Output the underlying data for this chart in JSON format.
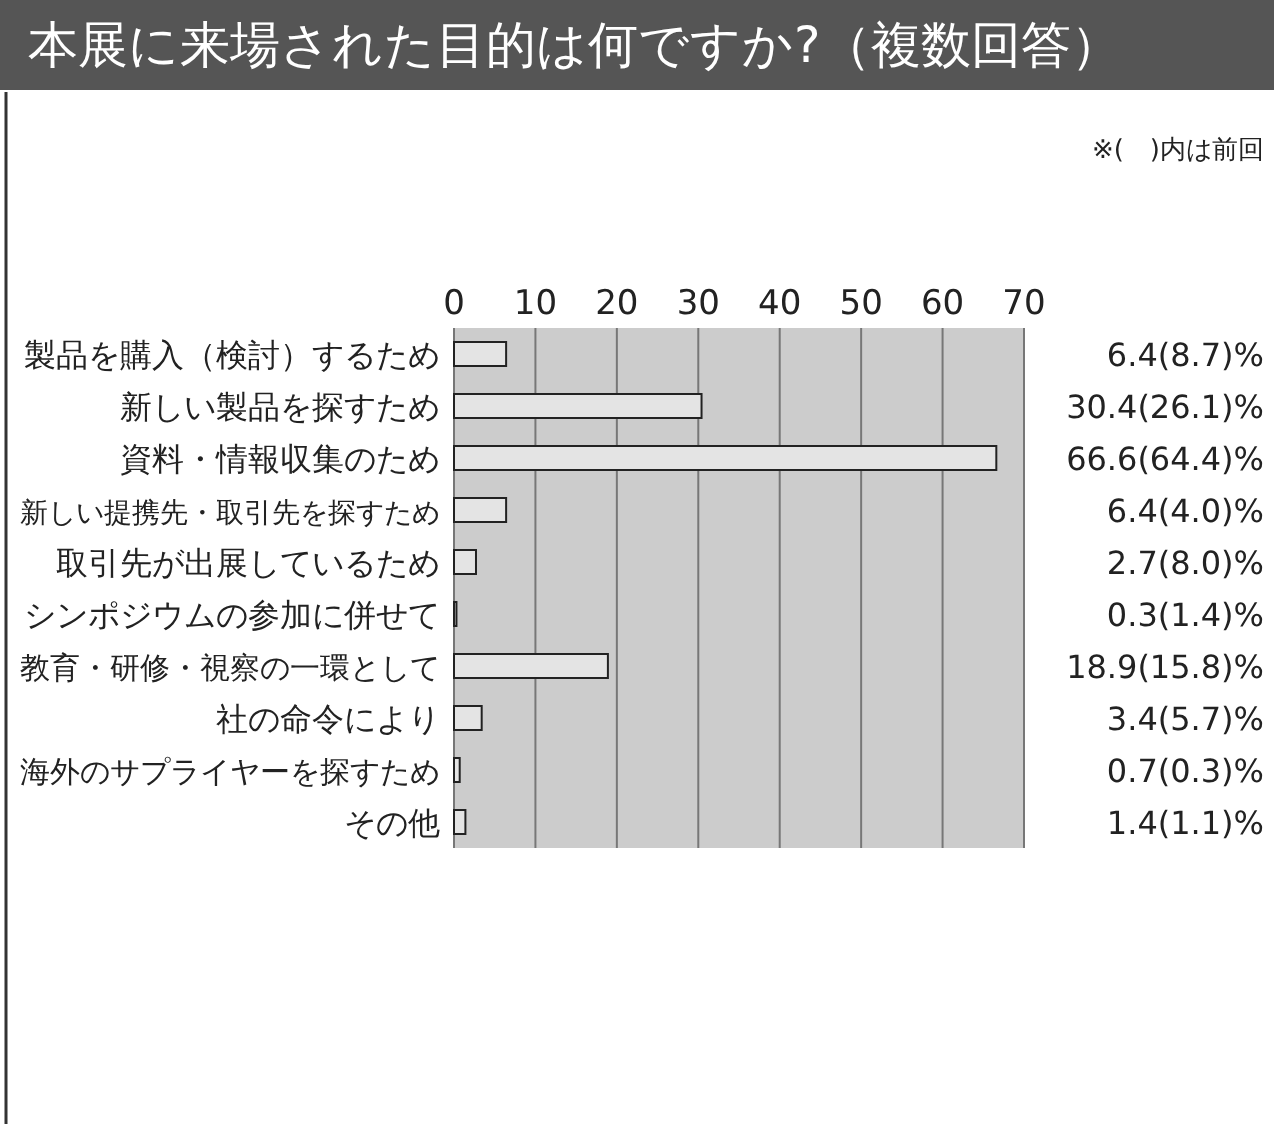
{
  "chart_data": {
    "type": "bar",
    "orientation": "horizontal",
    "title": "本展に来場された目的は何ですか?（複数回答）",
    "annotations": [
      "※(　)内は前回"
    ],
    "categories": [
      "製品を購入（検討）するため",
      "新しい製品を探すため",
      "資料・情報収集のため",
      "新しい提携先・取引先を探すため",
      "取引先が出展しているため",
      "シンポジウムの参加に併せて",
      "教育・研修・視察の一環として",
      "社の命令により",
      "海外のサプライヤーを探すため",
      "その他"
    ],
    "values": [
      6.4,
      30.4,
      66.6,
      6.4,
      2.7,
      0.3,
      18.9,
      3.4,
      0.7,
      1.4
    ],
    "value_labels": [
      "6.4(8.7)%",
      "30.4(26.1)%",
      "66.6(64.4)%",
      "6.4(4.0)%",
      "2.7(8.0)%",
      "0.3(1.4)%",
      "18.9(15.8)%",
      "3.4(5.7)%",
      "0.7(0.3)%",
      "1.4(1.1)%"
    ],
    "color": "#e4e4e4",
    "xlim": [
      0,
      70
    ],
    "xticks": [
      0,
      10,
      20,
      30,
      40,
      50,
      60,
      70
    ],
    "grid": "x"
  }
}
